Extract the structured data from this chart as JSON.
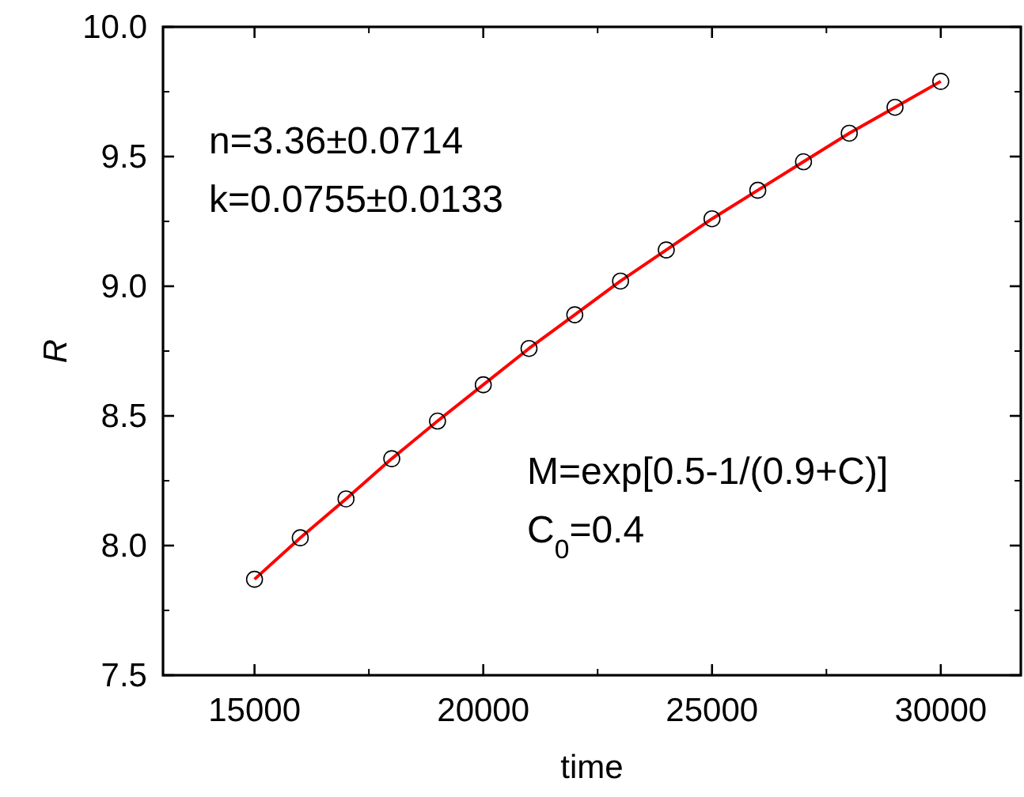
{
  "chart_data": {
    "type": "scatter",
    "xlabel": "time",
    "ylabel": "R",
    "x": [
      15000,
      16000,
      17000,
      18000,
      19000,
      20000,
      21000,
      22000,
      23000,
      24000,
      25000,
      26000,
      27000,
      28000,
      29000,
      30000
    ],
    "series": [
      {
        "type": "line",
        "color": "#ff0000",
        "marker": "none",
        "line_style": "solid",
        "values": [
          7.87,
          8.03,
          8.18,
          8.335,
          8.48,
          8.62,
          8.76,
          8.89,
          9.02,
          9.14,
          9.26,
          9.37,
          9.48,
          9.59,
          9.69,
          9.79
        ]
      },
      {
        "color": "#000000",
        "marker": "circle",
        "values": [
          7.87,
          8.03,
          8.18,
          8.335,
          8.48,
          8.62,
          8.76,
          8.89,
          9.02,
          9.14,
          9.26,
          9.37,
          9.48,
          9.59,
          9.69,
          9.79
        ]
      }
    ],
    "xlim": [
      13000,
      31750
    ],
    "xticks": [
      15000,
      20000,
      25000,
      30000
    ],
    "ylim": [
      7.5,
      10.0
    ],
    "yticks": [
      {
        "value": 7.5,
        "label": "7.5"
      },
      {
        "value": 8.0,
        "label": "8.0"
      },
      {
        "value": 8.5,
        "label": "8.5"
      },
      {
        "value": 9.0,
        "label": "9.0"
      },
      {
        "value": 9.5,
        "label": "9.5"
      },
      {
        "value": 10.0,
        "label": "10.0"
      }
    ],
    "grid": false,
    "annotations": [
      "n=3.36±0.0714",
      "k=0.0755±0.0133",
      "M=exp[0.5-1/(0.9+C)]",
      "C$_{0}$=0.4"
    ]
  }
}
